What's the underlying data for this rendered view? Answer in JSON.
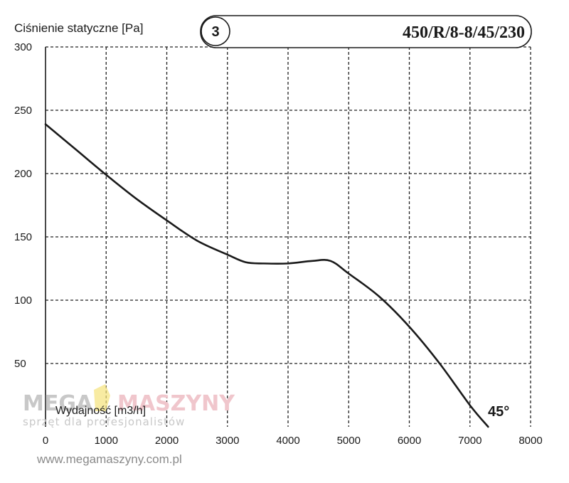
{
  "chart_data": {
    "type": "line",
    "title": "",
    "model": "450/R/8-8/45/230",
    "curve_badge": "3",
    "ylabel": "Ciśnienie statyczne [Pa]",
    "xlabel": "Wydajność [m3/h]",
    "curve_annotation": "45°",
    "xlim": [
      0,
      8000
    ],
    "ylim": [
      0,
      300
    ],
    "x_ticks": [
      0,
      1000,
      2000,
      3000,
      4000,
      5000,
      6000,
      7000,
      8000
    ],
    "y_ticks": [
      50,
      100,
      150,
      200,
      250,
      300
    ],
    "grid": true,
    "series": [
      {
        "x": [
          0,
          500,
          1000,
          1500,
          2000,
          2500,
          3000,
          3300,
          3600,
          4000,
          4400,
          4700,
          5000,
          5500,
          6000,
          6500,
          7000,
          7300
        ],
        "y": [
          239,
          219,
          199,
          180,
          163,
          147,
          136,
          130,
          129,
          129,
          131,
          131,
          121,
          103,
          79,
          50,
          17,
          0
        ]
      }
    ]
  },
  "watermark": {
    "brand_left": "MEGA",
    "brand_right": "MASZYNY",
    "tagline": "sprzęt dla profesjonalistów",
    "url": "www.megamaszyny.com.pl"
  },
  "colors": {
    "curve": "#1a1a1a",
    "grid": "#222222",
    "watermark_gray": "#c8c8c8",
    "watermark_pink": "#f0c6cc",
    "watermark_yellow": "#f5e27a"
  }
}
